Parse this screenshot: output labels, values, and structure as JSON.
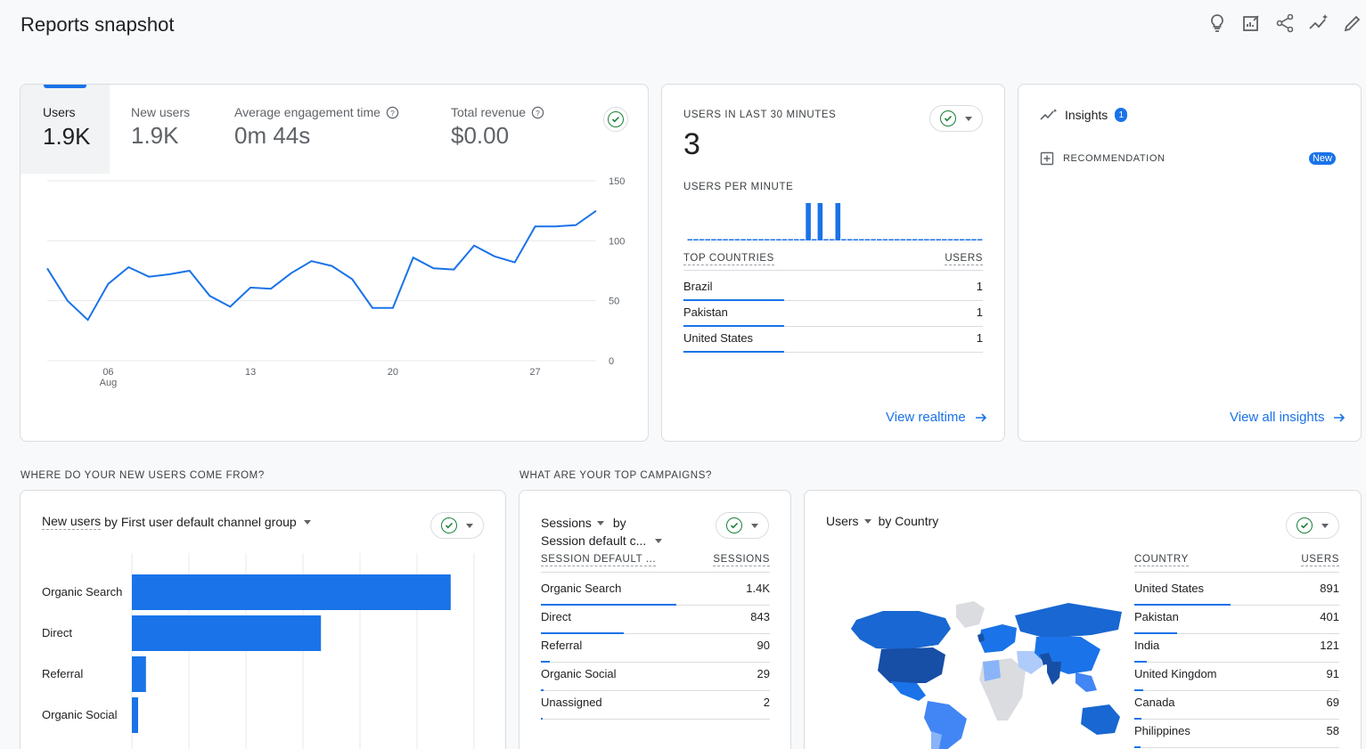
{
  "header": {
    "title": "Reports snapshot",
    "icons": [
      "lightbulb-icon",
      "edit-chart-icon",
      "share-icon",
      "insights-sparkle-icon",
      "pencil-icon"
    ]
  },
  "overview": {
    "metrics": [
      {
        "label": "Users",
        "value": "1.9K"
      },
      {
        "label": "New users",
        "value": "1.9K"
      },
      {
        "label": "Average engagement time",
        "value": "0m 44s"
      },
      {
        "label": "Total revenue",
        "value": "$0.00"
      }
    ],
    "chart_data": {
      "type": "line",
      "y_ticks": [
        "150",
        "100",
        "50",
        "0"
      ],
      "ylim": [
        0,
        150
      ],
      "x_ticks": [
        {
          "label": "06",
          "sub": "Aug"
        },
        {
          "label": "13",
          "sub": ""
        },
        {
          "label": "20",
          "sub": ""
        },
        {
          "label": "27",
          "sub": ""
        }
      ],
      "series": [
        {
          "values": [
            77,
            50,
            34,
            64,
            78,
            70,
            72,
            75,
            54,
            45,
            61,
            60,
            73,
            83,
            79,
            68,
            44,
            44,
            86,
            77,
            76,
            96,
            87,
            82,
            112,
            112,
            113,
            125
          ]
        }
      ]
    }
  },
  "realtime": {
    "title": "USERS IN LAST 30 MINUTES",
    "value": "3",
    "per_minute_label": "USERS PER MINUTE",
    "chart_data": {
      "type": "bar",
      "values": [
        0,
        0,
        0,
        0,
        0,
        0,
        0,
        0,
        0,
        0,
        0,
        0,
        0,
        0,
        0,
        0,
        0,
        0,
        0,
        0,
        1,
        0,
        1,
        0,
        0,
        1,
        0,
        0,
        0,
        0,
        0,
        0,
        0,
        0,
        0,
        0,
        0,
        0,
        0,
        0,
        0,
        0,
        0,
        0,
        0,
        0,
        0,
        0,
        0,
        0
      ]
    },
    "table": {
      "col1": "TOP COUNTRIES",
      "col2": "USERS",
      "rows": [
        {
          "name": "Brazil",
          "value": "1"
        },
        {
          "name": "Pakistan",
          "value": "1"
        },
        {
          "name": "United States",
          "value": "1"
        }
      ]
    },
    "link": "View realtime"
  },
  "insights": {
    "title": "Insights",
    "badge": "1",
    "recommendation": "RECOMMENDATION",
    "new_badge": "New",
    "link": "View all insights"
  },
  "section_new_users": "WHERE DO YOUR NEW USERS COME FROM?",
  "section_campaigns": "WHAT ARE YOUR TOP CAMPAIGNS?",
  "channels": {
    "title_metric": "New users",
    "title_rest": "by First user default channel group",
    "chart_data": {
      "type": "bar",
      "categories": [
        "Organic Search",
        "Direct",
        "Referral",
        "Organic Social"
      ],
      "values": [
        1130,
        670,
        50,
        22
      ],
      "xlim": [
        0,
        1200
      ]
    }
  },
  "campaigns": {
    "title_metric": "Sessions",
    "title_by": "by",
    "title_dim": "Session default c...",
    "col1": "SESSION DEFAULT ...",
    "col2": "SESSIONS",
    "rows": [
      {
        "name": "Organic Search",
        "value": "1.4K",
        "share": 0.59
      },
      {
        "name": "Direct",
        "value": "843",
        "share": 0.36
      },
      {
        "name": "Referral",
        "value": "90",
        "share": 0.04
      },
      {
        "name": "Organic Social",
        "value": "29",
        "share": 0.013
      },
      {
        "name": "Unassigned",
        "value": "2",
        "share": 0.003
      }
    ]
  },
  "countries": {
    "title_metric": "Users",
    "title_rest": "by Country",
    "col1": "COUNTRY",
    "col2": "USERS",
    "rows": [
      {
        "name": "United States",
        "value": "891",
        "share": 0.47
      },
      {
        "name": "Pakistan",
        "value": "401",
        "share": 0.21
      },
      {
        "name": "India",
        "value": "121",
        "share": 0.06
      },
      {
        "name": "United Kingdom",
        "value": "91",
        "share": 0.045
      },
      {
        "name": "Canada",
        "value": "69",
        "share": 0.035
      },
      {
        "name": "Philippines",
        "value": "58",
        "share": 0.03
      }
    ]
  }
}
